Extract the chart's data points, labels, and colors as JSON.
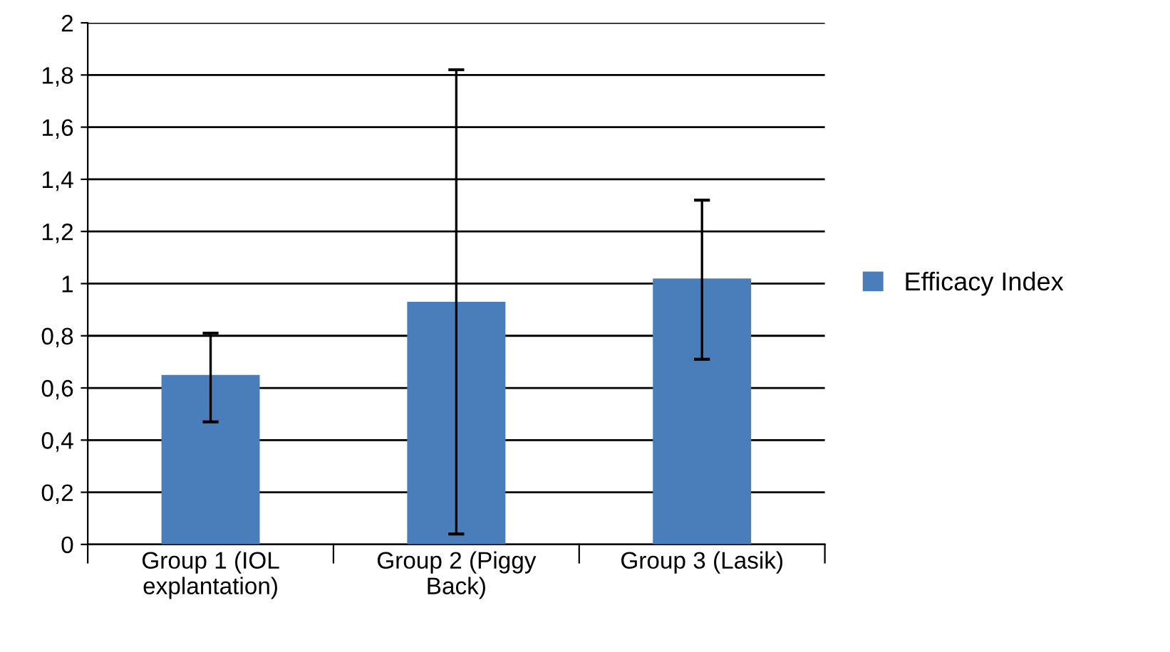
{
  "chart_data": {
    "type": "bar",
    "categories": [
      "Group 1 (IOL\nexplantation)",
      "Group 2 (Piggy\nBack)",
      "Group 3 (Lasik)"
    ],
    "series": [
      {
        "name": "Efficacy Index",
        "color": "#4a7ebb",
        "values": [
          0.65,
          0.93,
          1.02
        ],
        "errors": [
          [
            0.47,
            0.81
          ],
          [
            0.04,
            1.82
          ],
          [
            0.71,
            1.32
          ]
        ]
      }
    ],
    "ylim": [
      0,
      2
    ],
    "yticks": [
      0,
      {
        "value": 0.2,
        "label": "0,2"
      },
      {
        "value": 0.4,
        "label": "0,4"
      },
      {
        "value": 0.6,
        "label": "0,6"
      },
      {
        "value": 0.8,
        "label": "0,8"
      },
      1,
      {
        "value": 1.2,
        "label": "1,2"
      },
      {
        "value": 1.4,
        "label": "1,4"
      },
      {
        "value": 1.6,
        "label": "1,6"
      },
      {
        "value": 1.8,
        "label": "1,8"
      },
      2
    ],
    "grid": "y",
    "legend": "right"
  }
}
